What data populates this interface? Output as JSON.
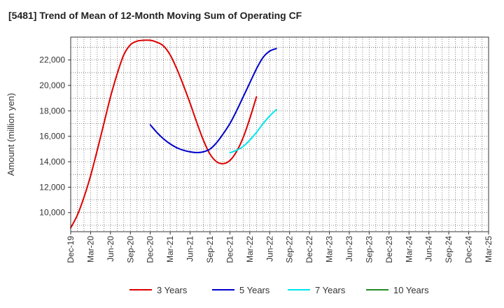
{
  "title": "[5481]  Trend of Mean of 12-Month Moving Sum of Operating CF",
  "chart_data": {
    "type": "line",
    "title": "[5481]  Trend of Mean of 12-Month Moving Sum of Operating CF",
    "xlabel": "",
    "ylabel": "Amount (million yen)",
    "ylim": [
      8500,
      23800
    ],
    "y_ticks": [
      10000,
      12000,
      14000,
      16000,
      18000,
      20000,
      22000
    ],
    "y_tick_labels": [
      "10,000",
      "12,000",
      "14,000",
      "16,000",
      "18,000",
      "20,000",
      "22,000"
    ],
    "x_ticks": [
      "Dec-19",
      "Mar-20",
      "Jun-20",
      "Sep-20",
      "Dec-20",
      "Mar-21",
      "Jun-21",
      "Sep-21",
      "Dec-21",
      "Mar-22",
      "Jun-22",
      "Sep-22",
      "Dec-22",
      "Mar-23",
      "Jun-23",
      "Sep-23",
      "Dec-23",
      "Mar-24",
      "Jun-24",
      "Sep-24",
      "Dec-24",
      "Mar-25"
    ],
    "grid": true,
    "legend_position": "bottom",
    "series": [
      {
        "name": "3 Years",
        "color": "#dd0000",
        "points": [
          [
            0,
            8800
          ],
          [
            1,
            9800
          ],
          [
            2,
            11200
          ],
          [
            3,
            12900
          ],
          [
            4,
            14900
          ],
          [
            5,
            17000
          ],
          [
            6,
            19100
          ],
          [
            7,
            20900
          ],
          [
            8,
            22400
          ],
          [
            9,
            23200
          ],
          [
            10,
            23480
          ],
          [
            11,
            23550
          ],
          [
            12,
            23550
          ],
          [
            13,
            23400
          ],
          [
            14,
            23100
          ],
          [
            15,
            22400
          ],
          [
            16,
            21300
          ],
          [
            17,
            20000
          ],
          [
            18,
            18600
          ],
          [
            19,
            17100
          ],
          [
            20,
            15700
          ],
          [
            21,
            14600
          ],
          [
            22,
            14000
          ],
          [
            23,
            13850
          ],
          [
            24,
            14100
          ],
          [
            25,
            14800
          ],
          [
            26,
            15900
          ],
          [
            27,
            17400
          ],
          [
            28,
            19100
          ]
        ]
      },
      {
        "name": "5 Years",
        "color": "#0000cc",
        "points": [
          [
            12,
            16900
          ],
          [
            13,
            16300
          ],
          [
            14,
            15800
          ],
          [
            15,
            15400
          ],
          [
            16,
            15100
          ],
          [
            17,
            14900
          ],
          [
            18,
            14780
          ],
          [
            19,
            14720
          ],
          [
            20,
            14780
          ],
          [
            21,
            15000
          ],
          [
            22,
            15500
          ],
          [
            23,
            16200
          ],
          [
            24,
            17000
          ],
          [
            25,
            18000
          ],
          [
            26,
            19100
          ],
          [
            27,
            20200
          ],
          [
            28,
            21300
          ],
          [
            29,
            22200
          ],
          [
            30,
            22700
          ],
          [
            31,
            22900
          ]
        ]
      },
      {
        "name": "7 Years",
        "color": "#00e5ee",
        "points": [
          [
            24,
            14700
          ],
          [
            25,
            14900
          ],
          [
            26,
            15200
          ],
          [
            27,
            15700
          ],
          [
            28,
            16300
          ],
          [
            29,
            17000
          ],
          [
            30,
            17600
          ],
          [
            31,
            18100
          ]
        ]
      },
      {
        "name": "10 Years",
        "color": "#228b22",
        "points": []
      }
    ]
  }
}
